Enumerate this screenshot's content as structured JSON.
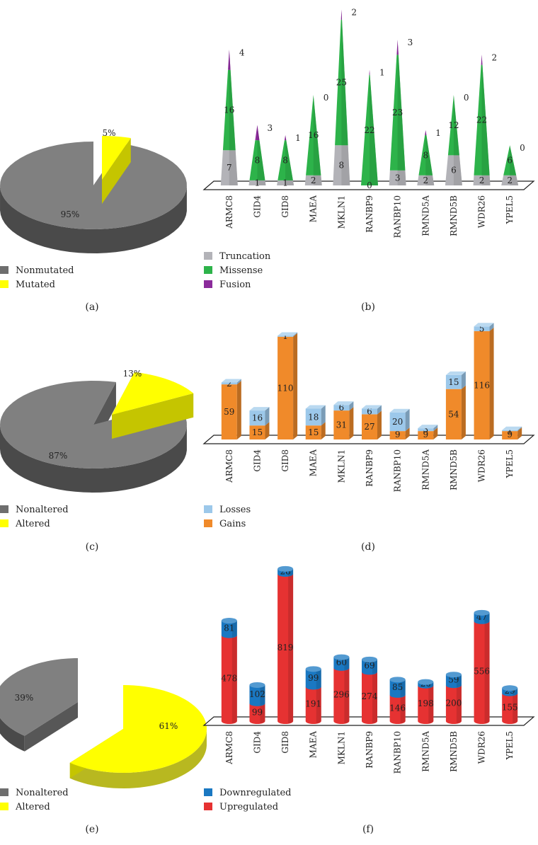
{
  "figure": {
    "panels": [
      {
        "id": "a",
        "letter": "(a)"
      },
      {
        "id": "b",
        "letter": "(b)"
      },
      {
        "id": "c",
        "letter": "(c)"
      },
      {
        "id": "d",
        "letter": "(d)"
      },
      {
        "id": "e",
        "letter": "(e)"
      },
      {
        "id": "f",
        "letter": "(f)"
      }
    ]
  },
  "colors": {
    "gray": "#808080",
    "gray_dark": "#4a4a4a",
    "yellow": "#ffff00",
    "yellow_dark": "#b8b820",
    "truncation": "#b3b3b8",
    "missense": "#2db34a",
    "fusion": "#8b2b9b",
    "losses": "#9cc8ea",
    "gains": "#f08a2a",
    "down": "#1a78c2",
    "up": "#e63232"
  },
  "chart_data": [
    {
      "id": "a",
      "type": "pie",
      "labels": [
        "Nonmutated",
        "Mutated"
      ],
      "values": [
        95,
        5
      ],
      "value_labels": [
        "95%",
        "5%"
      ],
      "legend": [
        {
          "label": "Nonmutated",
          "color": "#6e6e6e"
        },
        {
          "label": "Mutated",
          "color": "#ffff00"
        }
      ]
    },
    {
      "id": "b",
      "type": "bar",
      "style": "stacked-cone",
      "categories": [
        "ARMC8",
        "GID4",
        "GID8",
        "MAEA",
        "MKLN1",
        "RANBP9",
        "RANBP10",
        "RMND5A",
        "RMND5B",
        "WDR26",
        "YPEL5"
      ],
      "series": [
        {
          "name": "Truncation",
          "values": [
            7,
            1,
            1,
            2,
            8,
            0,
            3,
            2,
            6,
            2,
            2
          ]
        },
        {
          "name": "Missense",
          "values": [
            16,
            8,
            8,
            16,
            25,
            22,
            23,
            8,
            12,
            22,
            6
          ]
        },
        {
          "name": "Fusion",
          "values": [
            4,
            3,
            1,
            0,
            2,
            1,
            3,
            1,
            0,
            2,
            0
          ]
        }
      ],
      "legend": [
        "Truncation",
        "Missense",
        "Fusion"
      ]
    },
    {
      "id": "c",
      "type": "pie",
      "labels": [
        "Nonaltered",
        "Altered"
      ],
      "values": [
        87,
        13
      ],
      "value_labels": [
        "87%",
        "13%"
      ],
      "legend": [
        {
          "label": "Nonaltered",
          "color": "#6e6e6e"
        },
        {
          "label": "Altered",
          "color": "#ffff00"
        }
      ]
    },
    {
      "id": "d",
      "type": "bar",
      "style": "stacked-3d",
      "categories": [
        "ARMC8",
        "GID4",
        "GID8",
        "MAEA",
        "MKLN1",
        "RANBP9",
        "RANBP10",
        "RMND5A",
        "RMND5B",
        "WDR26",
        "YPEL5"
      ],
      "series": [
        {
          "name": "Gains",
          "values": [
            59,
            15,
            110,
            15,
            31,
            27,
            9,
            9,
            54,
            116,
            9
          ]
        },
        {
          "name": "Losses",
          "values": [
            2,
            16,
            1,
            18,
            6,
            6,
            20,
            3,
            15,
            5,
            1
          ]
        }
      ],
      "legend": [
        "Losses",
        "Gains"
      ]
    },
    {
      "id": "e",
      "type": "pie",
      "labels": [
        "Nonaltered",
        "Altered"
      ],
      "values": [
        39,
        61
      ],
      "value_labels": [
        "39%",
        "61%"
      ],
      "legend": [
        {
          "label": "Nonaltered",
          "color": "#6e6e6e"
        },
        {
          "label": "Altered",
          "color": "#ffff00"
        }
      ]
    },
    {
      "id": "f",
      "type": "bar",
      "style": "stacked-cylinder",
      "categories": [
        "ARMC8",
        "GID4",
        "GID8",
        "MAEA",
        "MKLN1",
        "RANBP9",
        "RANBP10",
        "RMND5A",
        "RMND5B",
        "WDR26",
        "YPEL5"
      ],
      "series": [
        {
          "name": "Upregulated",
          "values": [
            478,
            99,
            819,
            191,
            296,
            274,
            146,
            198,
            200,
            556,
            155
          ]
        },
        {
          "name": "Downregulated",
          "values": [
            81,
            102,
            28,
            99,
            60,
            69,
            85,
            20,
            59,
            47,
            29
          ]
        }
      ],
      "legend": [
        "Downregulated",
        "Upregulated"
      ]
    }
  ]
}
